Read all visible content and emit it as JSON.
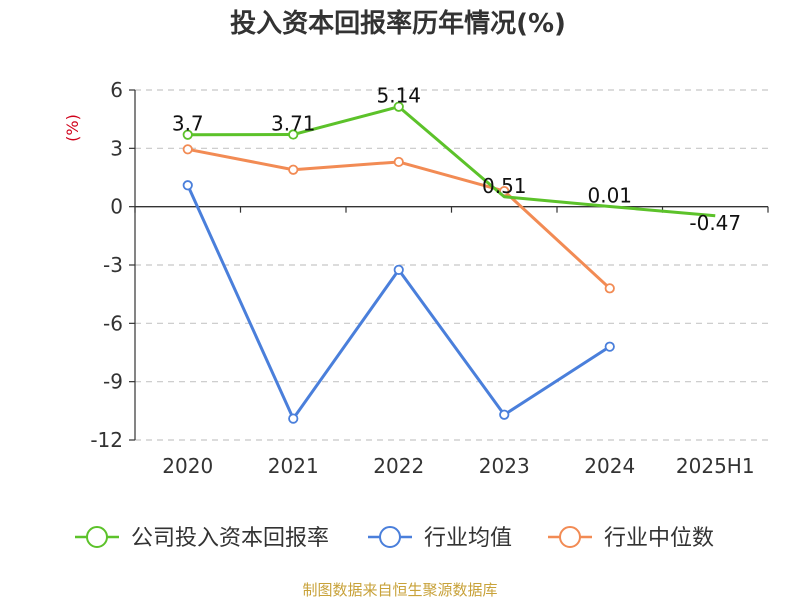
{
  "chart_data": {
    "type": "line",
    "title": "投入资本回报率历年情况(%)",
    "ylabel": "(%)",
    "xlabel": "",
    "categories": [
      "2020",
      "2021",
      "2022",
      "2023",
      "2024",
      "2025H1"
    ],
    "ylim": [
      -12,
      6
    ],
    "yticks": [
      6,
      3,
      0,
      -3,
      -6,
      -9,
      -12
    ],
    "grid": true,
    "legend_position": "bottom",
    "series": [
      {
        "name": "公司投入资本回报率",
        "color": "#5cc22a",
        "values": [
          3.7,
          3.71,
          5.14,
          0.51,
          0.01,
          -0.47
        ],
        "labels": [
          "3.7",
          "3.71",
          "5.14",
          "0.51",
          "0.01",
          "-0.47"
        ],
        "markers": [
          true,
          true,
          true,
          false,
          false,
          false
        ]
      },
      {
        "name": "行业均值",
        "color": "#4a7fdb",
        "values": [
          1.1,
          -10.9,
          -3.25,
          -10.7,
          -7.2,
          null
        ],
        "markers": [
          true,
          true,
          true,
          true,
          true,
          false
        ]
      },
      {
        "name": "行业中位数",
        "color": "#f28b54",
        "values": [
          2.95,
          1.9,
          2.3,
          0.8,
          -4.2,
          null
        ],
        "markers": [
          true,
          true,
          true,
          true,
          true,
          false
        ]
      }
    ],
    "source": "制图数据来自恒生聚源数据库"
  }
}
